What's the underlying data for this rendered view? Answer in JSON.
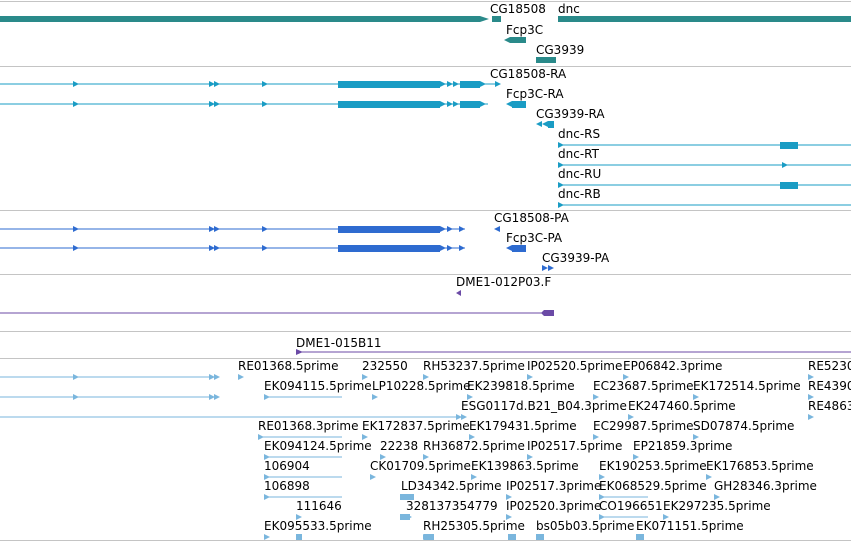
{
  "colors": {
    "gene": "#2a8a8a",
    "transcript": "#1a9cc4",
    "protein": "#2e6bd0",
    "clone": "#6b4aa6",
    "est": "#7ab6dd",
    "separator": "#c4c4c4"
  },
  "tracks": {
    "genes": {
      "labels": [
        "CG18508",
        "dnc",
        "Fcp3C",
        "CG3939"
      ]
    },
    "transcripts": {
      "labels": [
        "CG18508-RA",
        "Fcp3C-RA",
        "CG3939-RA",
        "dnc-RS",
        "dnc-RT",
        "dnc-RU",
        "dnc-RB"
      ]
    },
    "proteins": {
      "labels": [
        "CG18508-PA",
        "Fcp3C-PA",
        "CG3939-PA"
      ]
    },
    "clone_a": {
      "labels": [
        "DME1-012P03.F"
      ]
    },
    "clone_b": {
      "labels": [
        "DME1-015B11"
      ]
    },
    "ests": {
      "labels": [
        "RE01368.5prime",
        "232550",
        "RH53237.5prime",
        "IP02520.5prime",
        "EP06842.3prime",
        "RE5230",
        "EK094115.5prime",
        "LP10228.5prime",
        "EK239818.5prime",
        "EC23687.5prime",
        "EK172514.5prime",
        "RE4390",
        "ESG0117d.B21_B04.3prime",
        "EK247460.5prime",
        "RE4863",
        "RE01368.3prime",
        "EK172837.5prime",
        "EK179431.5prime",
        "EC29987.5prime",
        "SD07874.5prime",
        "EK094124.5prime",
        "22238",
        "RH36872.5prime",
        "IP02517.5prime",
        "EP21859.3prime",
        "106904",
        "CK01709.5prime",
        "EK139863.5prime",
        "EK190253.5prime",
        "EK176853.5prime",
        "106898",
        "LD34342.5prime",
        "IP02517.3prime",
        "EK068529.5prime",
        "GH28346.3prime",
        "111646",
        "328137354779",
        "IP02520.3prime",
        "CO196651",
        "EK297235.5prime",
        "EK095533.5prime",
        "RH25305.5prime",
        "bs05b03.5prime",
        "EK071151.5prime"
      ]
    }
  }
}
